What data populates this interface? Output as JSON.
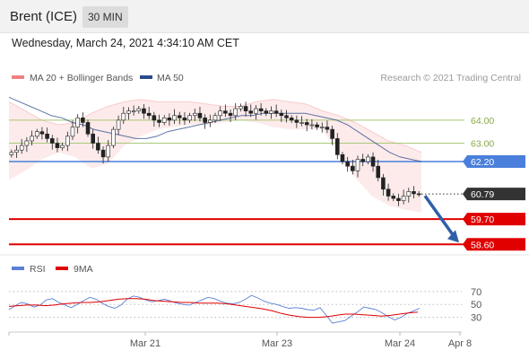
{
  "header": {
    "instrument": "Brent (ICE)",
    "timeframe": "30 MIN"
  },
  "datetime": "Wednesday, March 24, 2021 4:34:10 AM CET",
  "credit": "Research © 2021 Trading Central",
  "colors": {
    "bollinger": "#f08080",
    "ma50": "#2a4a8a",
    "rsi": "#5b7fd6",
    "rsi_ma": "#e00000",
    "resistance": "#a8c878",
    "pivot": "#4a7fdb",
    "support": "#e00000",
    "price_tag": "#333333",
    "arrow": "#2f5fa8"
  },
  "chart_data": [
    {
      "type": "line",
      "name": "price",
      "legend": [
        {
          "label": "MA 20 + Bollinger Bands",
          "color": "#f08080"
        },
        {
          "label": "MA 50",
          "color": "#2a4a8a"
        }
      ],
      "ylim": [
        58.3,
        65.4
      ],
      "current_price": "60.79",
      "x_ticks": [
        "Mar 21",
        "Mar 23",
        "Mar 24",
        "Apr 8"
      ],
      "levels": [
        {
          "value": 64.0,
          "label": "64.00",
          "kind": "resistance"
        },
        {
          "value": 63.0,
          "label": "63.00",
          "kind": "resistance"
        },
        {
          "value": 62.2,
          "label": "62.20",
          "kind": "pivot"
        },
        {
          "value": 59.7,
          "label": "59.70",
          "kind": "support"
        },
        {
          "value": 58.6,
          "label": "58.60",
          "kind": "support"
        }
      ],
      "close": [
        62.6,
        62.7,
        62.9,
        63.1,
        63.3,
        63.5,
        63.4,
        63.2,
        63.0,
        62.8,
        62.9,
        63.3,
        63.7,
        64.1,
        63.9,
        63.4,
        63.0,
        62.7,
        62.4,
        62.9,
        63.6,
        64.0,
        64.3,
        64.4,
        64.4,
        64.5,
        64.3,
        64.2,
        64.0,
        63.9,
        64.1,
        64.0,
        64.2,
        64.1,
        64.0,
        64.2,
        64.3,
        64.1,
        63.9,
        64.0,
        64.2,
        64.4,
        64.3,
        64.2,
        64.5,
        64.6,
        64.4,
        64.3,
        64.5,
        64.4,
        64.3,
        64.4,
        64.3,
        64.2,
        64.1,
        64.0,
        63.9,
        63.9,
        63.8,
        63.8,
        63.7,
        63.7,
        63.6,
        63.2,
        62.5,
        62.2,
        62.0,
        61.8,
        62.3,
        62.2,
        62.4,
        62.0,
        61.5,
        61.0,
        60.7,
        60.6,
        60.5,
        60.7,
        60.9,
        60.8,
        60.79
      ],
      "ma50": [
        65.0,
        64.8,
        64.6,
        64.4,
        64.2,
        64.1,
        63.9,
        63.8,
        63.6,
        63.5,
        63.4,
        63.3,
        63.2,
        63.2,
        63.3,
        63.5,
        63.6,
        63.7,
        63.8,
        63.9,
        64.0,
        64.1,
        64.2,
        64.2,
        64.3,
        64.3,
        64.3,
        64.3,
        64.3,
        64.2,
        64.1,
        64.0,
        63.8,
        63.5,
        63.2,
        62.9,
        62.6,
        62.4,
        62.3,
        62.2
      ],
      "bb_upper": [
        64.8,
        64.4,
        64.0,
        63.8,
        63.9,
        64.3,
        64.6,
        64.8,
        64.9,
        64.8,
        64.8,
        64.8,
        64.7,
        64.6,
        64.6,
        64.8,
        64.9,
        64.8,
        64.7,
        64.4,
        64.2,
        63.9,
        63.5,
        63.1,
        62.9,
        62.6
      ],
      "bb_lower": [
        61.4,
        61.8,
        62.3,
        62.6,
        62.4,
        61.9,
        62.1,
        62.9,
        63.3,
        63.6,
        63.7,
        63.8,
        63.8,
        63.9,
        64.0,
        63.9,
        63.7,
        63.6,
        63.6,
        63.6,
        62.5,
        61.5,
        60.7,
        60.3,
        60.1,
        60.0
      ]
    },
    {
      "type": "line",
      "name": "rsi",
      "legend": [
        {
          "label": "RSI",
          "color": "#5b7fd6"
        },
        {
          "label": "9MA",
          "color": "#e00000"
        }
      ],
      "y_ticks": [
        "70",
        "50",
        "30"
      ],
      "ylim": [
        10,
        85
      ],
      "rsi": [
        42,
        48,
        53,
        51,
        46,
        49,
        57,
        59,
        53,
        49,
        45,
        50,
        56,
        61,
        58,
        52,
        47,
        44,
        49,
        58,
        63,
        61,
        57,
        54,
        56,
        58,
        55,
        52,
        50,
        49,
        53,
        57,
        61,
        59,
        55,
        52,
        51,
        53,
        58,
        64,
        60,
        55,
        52,
        50,
        47,
        44,
        45,
        44,
        42,
        41,
        45,
        33,
        21,
        23,
        25,
        32,
        38,
        46,
        44,
        42,
        37,
        31,
        26,
        30,
        36,
        40,
        44
      ],
      "rsi_ma": [
        47,
        48,
        49,
        49,
        48,
        49,
        51,
        52,
        53,
        53,
        54,
        56,
        58,
        59,
        59,
        58,
        56,
        55,
        54,
        53,
        53,
        52,
        52,
        52,
        51,
        49,
        47,
        45,
        43,
        40,
        36,
        33,
        31,
        30,
        30,
        31,
        33,
        35,
        35,
        34,
        33,
        32,
        33,
        35,
        37,
        38
      ]
    }
  ]
}
